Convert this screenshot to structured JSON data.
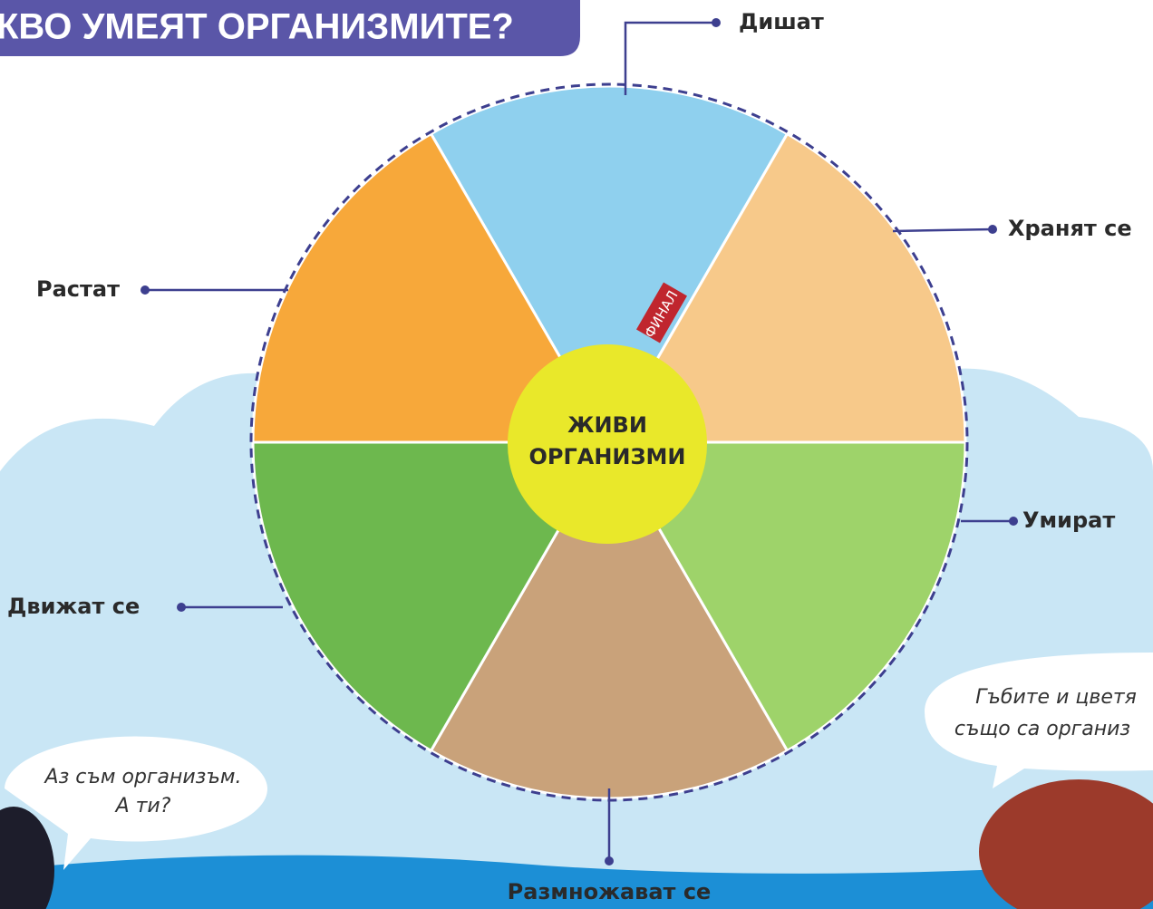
{
  "header": {
    "title": "КВО УМЕЯТ ОРГАНИЗМИТЕ?"
  },
  "center": {
    "lines": [
      "ЖИВИ",
      "ОРГАНИЗМИ"
    ]
  },
  "labels": {
    "breathe": "Дишат",
    "eat": "Хранят се",
    "die": "Умират",
    "reproduce": "Размножават се",
    "move": "Движат се",
    "grow": "Растат"
  },
  "sign": "ФИНАЛ",
  "bubbles": [
    {
      "lines": [
        "Аз съм организъм.",
        "А ти?"
      ]
    },
    {
      "lines": [
        "Гъбите и цветя",
        "също са организ"
      ]
    }
  ]
}
